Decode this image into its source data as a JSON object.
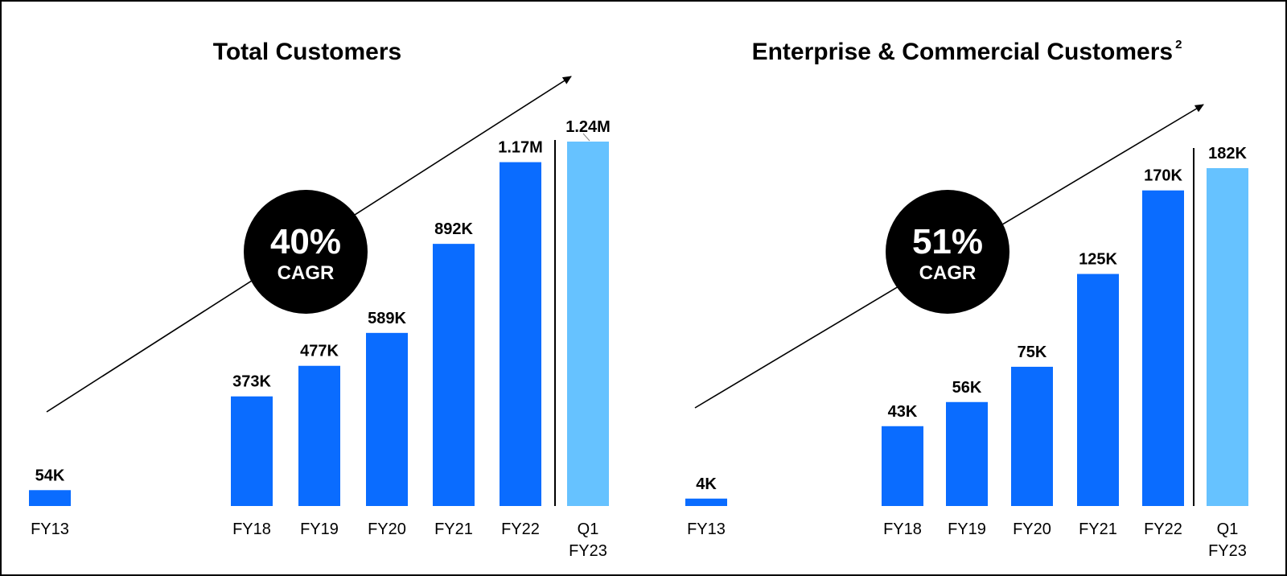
{
  "colors": {
    "bar_primary": "#0a6cff",
    "bar_highlight": "#66c2ff",
    "text": "#000000",
    "badge_bg": "#000000",
    "badge_text": "#ffffff"
  },
  "chart_data": [
    {
      "type": "bar",
      "title": "Total Customers",
      "title_superscript": "",
      "unit": "customers (thousands)",
      "categories": [
        "FY13",
        "FY18",
        "FY19",
        "FY20",
        "FY21",
        "FY22",
        "Q1\nFY23"
      ],
      "values": [
        54,
        373,
        477,
        589,
        892,
        1170,
        1240
      ],
      "value_labels": [
        "54K",
        "373K",
        "477K",
        "589K",
        "892K",
        "1.17M",
        "1.24M"
      ],
      "highlight_index": 6,
      "separator_before_index": 6,
      "cagr": {
        "value": "40%",
        "label": "CAGR"
      },
      "xlabel": "",
      "ylabel": "",
      "ylim": [
        0,
        1240
      ],
      "grid": false,
      "legend": "none"
    },
    {
      "type": "bar",
      "title": "Enterprise & Commercial Customers",
      "title_superscript": "2",
      "unit": "customers (thousands)",
      "categories": [
        "FY13",
        "FY18",
        "FY19",
        "FY20",
        "FY21",
        "FY22",
        "Q1\nFY23"
      ],
      "values": [
        4,
        43,
        56,
        75,
        125,
        170,
        182
      ],
      "value_labels": [
        "4K",
        "43K",
        "56K",
        "75K",
        "125K",
        "170K",
        "182K"
      ],
      "highlight_index": 6,
      "separator_before_index": 6,
      "cagr": {
        "value": "51%",
        "label": "CAGR"
      },
      "xlabel": "",
      "ylabel": "",
      "ylim": [
        0,
        182
      ],
      "grid": false,
      "legend": "none"
    }
  ]
}
